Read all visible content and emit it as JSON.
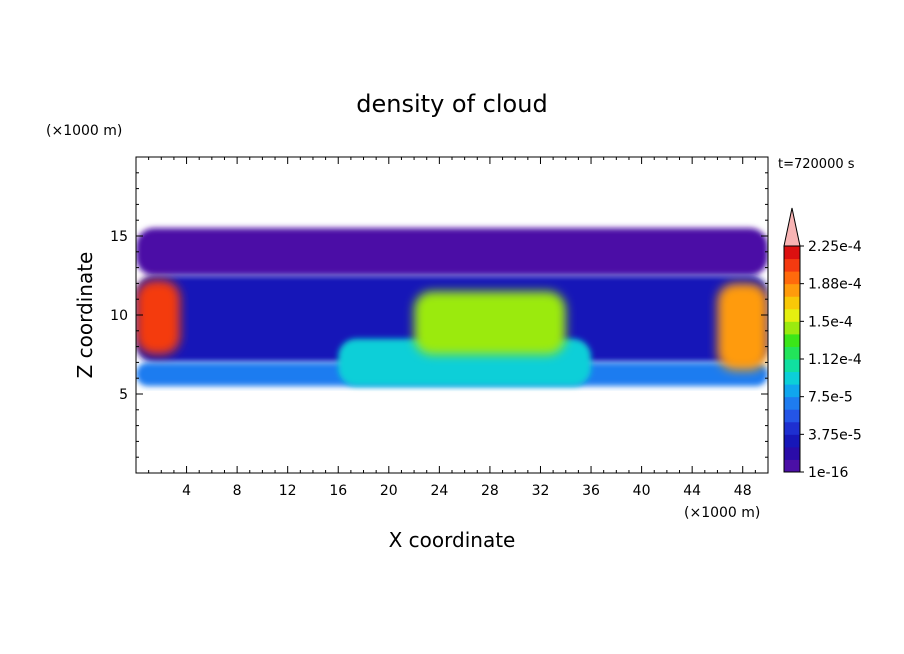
{
  "chart_data": {
    "type": "heatmap",
    "title": "density of cloud",
    "xlabel": "X coordinate",
    "ylabel": "Z coordinate",
    "x_unit": "(×1000 m)",
    "y_unit": "(×1000 m)",
    "time_label": "t=720000 s",
    "xlim": [
      0,
      50
    ],
    "ylim": [
      0,
      20
    ],
    "x_ticks": [
      4,
      8,
      12,
      16,
      20,
      24,
      28,
      32,
      36,
      40,
      44,
      48
    ],
    "y_ticks": [
      5,
      10,
      15
    ],
    "colorbar": {
      "colors": [
        "#4b0fa6",
        "#2a0ca8",
        "#1717b8",
        "#1e2fd0",
        "#2455e6",
        "#1e7cf0",
        "#10a6ee",
        "#0ccfd8",
        "#10dfa0",
        "#22e45a",
        "#3be619",
        "#9bea0f",
        "#e5ef10",
        "#f8c808",
        "#ff9b0c",
        "#ff6a0c",
        "#f43a10",
        "#dc1010"
      ],
      "over_color": "#f8b4b4",
      "tick_labels": [
        "1e-16",
        "3.75e-5",
        "7.5e-5",
        "1.12e-4",
        "1.5e-4",
        "1.88e-4",
        "2.25e-4"
      ]
    },
    "cloud_regions": [
      {
        "x": [
          0,
          3.5
        ],
        "z": [
          7.5,
          12.2
        ],
        "level": 16
      },
      {
        "x": [
          46,
          50
        ],
        "z": [
          6.5,
          12.0
        ],
        "level": 14
      },
      {
        "x": [
          22,
          34
        ],
        "z": [
          7.5,
          11.5
        ],
        "level": 11
      },
      {
        "x": [
          16,
          36
        ],
        "z": [
          5.5,
          8.5
        ],
        "level": 7
      },
      {
        "x": [
          0,
          50
        ],
        "z": [
          5.5,
          7.0
        ],
        "level": 5
      },
      {
        "x": [
          0,
          50
        ],
        "z": [
          7.0,
          12.5
        ],
        "level": 2
      },
      {
        "x": [
          0,
          50
        ],
        "z": [
          12.5,
          15.5
        ],
        "level": 0
      }
    ]
  }
}
